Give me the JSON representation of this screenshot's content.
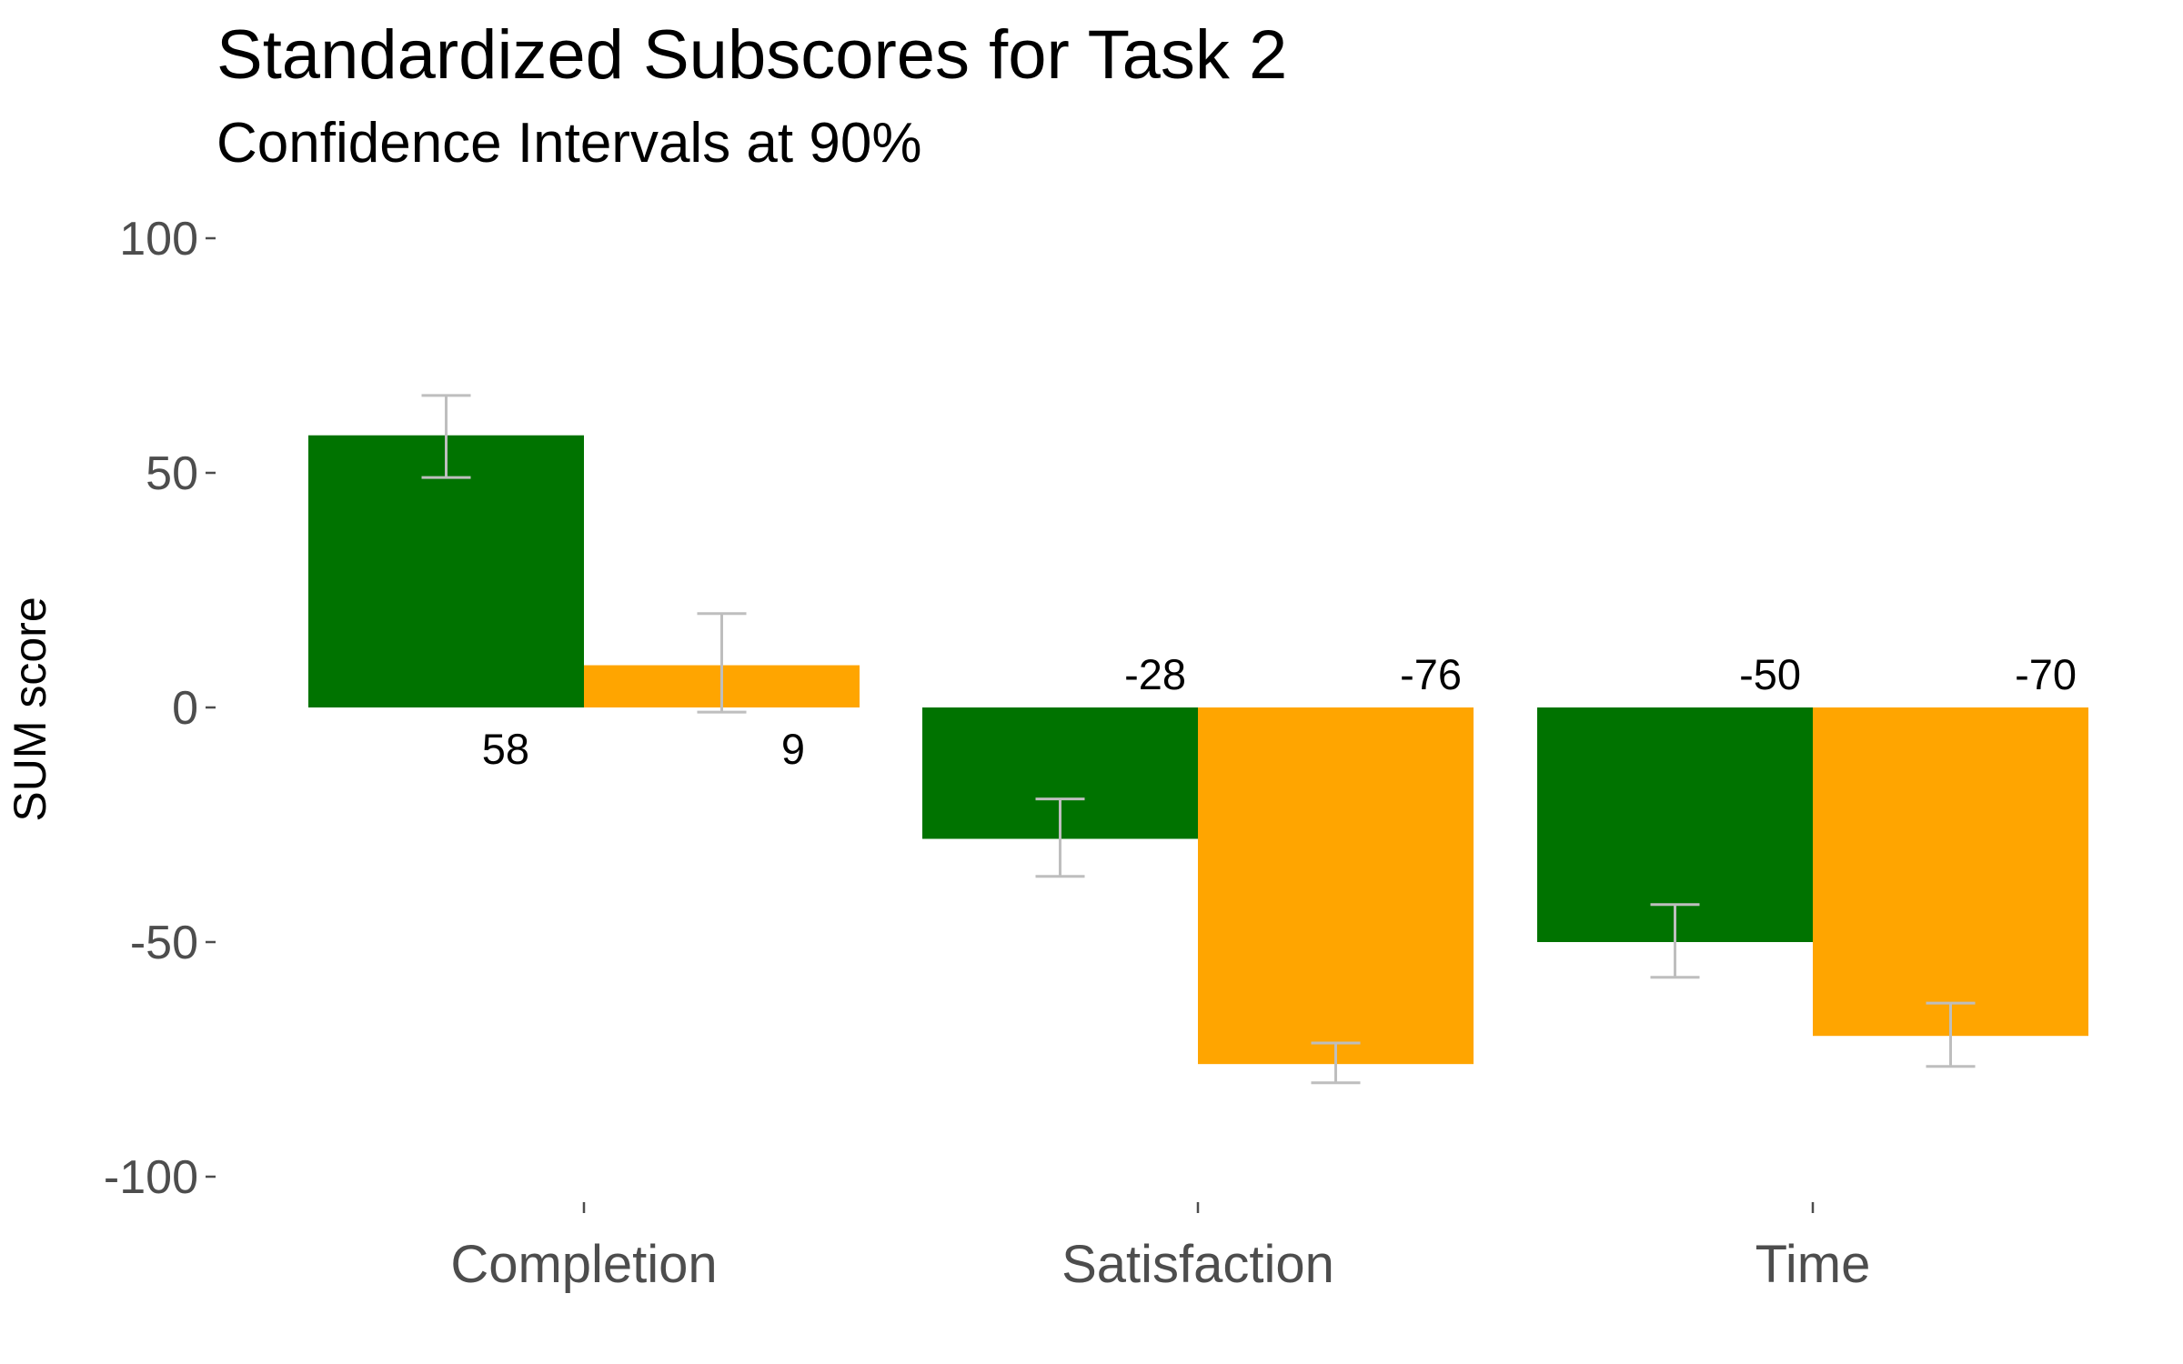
{
  "chart_data": {
    "type": "bar",
    "title": "Standardized Subscores for Task 2",
    "subtitle": "Confidence Intervals at 90%",
    "xlabel": "",
    "ylabel": "SUM score",
    "ylim": [
      -110,
      100
    ],
    "yticks": [
      100,
      50,
      0,
      -50,
      -100
    ],
    "ytick_labels": [
      "100",
      "50",
      "0",
      "-50",
      "-100"
    ],
    "categories": [
      "Completion",
      "Satisfaction",
      "Time"
    ],
    "grid": false,
    "legend": "none",
    "series": [
      {
        "color": "#007300",
        "values": [
          58,
          -28,
          -50
        ],
        "labels": [
          "58",
          "-28",
          "-50"
        ],
        "ci_low": [
          49,
          -36,
          -57.5
        ],
        "ci_high": [
          66.5,
          -19.5,
          -42
        ]
      },
      {
        "color": "#ffa500",
        "values": [
          9,
          -76,
          -70
        ],
        "labels": [
          "9",
          "-76",
          "-70"
        ],
        "ci_low": [
          -1,
          -80,
          -76.5
        ],
        "ci_high": [
          20,
          -71.5,
          -63
        ]
      }
    ],
    "errorbar_color": "#bebebe",
    "tick_color": "#4d4d4d"
  }
}
